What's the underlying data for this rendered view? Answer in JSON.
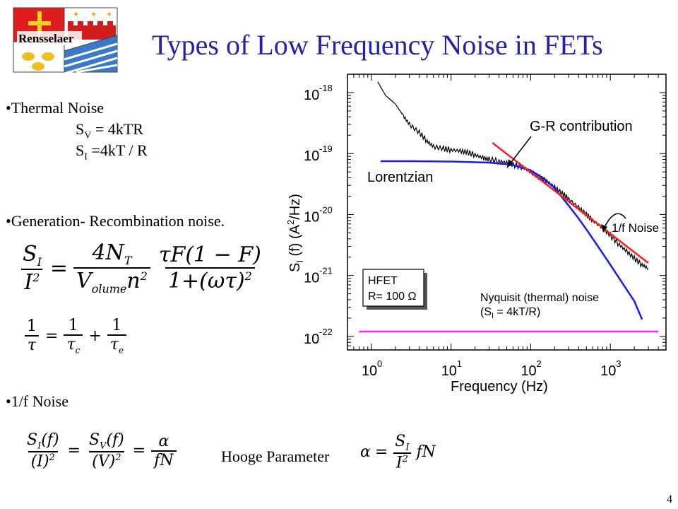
{
  "slide": {
    "title": "Types of Low Frequency Noise in FETs",
    "page_number": "4",
    "logo_text": "Rensselaer"
  },
  "thermal": {
    "bullet": "•Thermal Noise",
    "sv": "S",
    "sv_sub": "V",
    "sv_rest": " = 4kTR",
    "si": "S",
    "si_sub": "I",
    "si_rest": " =4kT / R"
  },
  "gr": {
    "bullet": "•Generation- Recombination noise.",
    "lhs_num": "S",
    "lhs_num_sub": "I",
    "lhs_den": "I",
    "lhs_den_sup": "2",
    "mid_num": "4N",
    "mid_num_sub": "T",
    "mid_den": "V",
    "mid_den_sub": "olume",
    "mid_den_rest": "n",
    "mid_den_sup": "2",
    "right_num": "τF(1 − F)",
    "right_den": "1+(ωτ)",
    "right_den_sup": "2",
    "tau_lhs": "τ",
    "tau_c": "τ",
    "tau_c_sub": "c",
    "tau_e": "τ",
    "tau_e_sub": "e",
    "one": "1"
  },
  "flicker": {
    "bullet": "•1/f Noise",
    "f1_num": "S",
    "f1_num_sub": "I",
    "f1_num_rest": "(f)",
    "f1_den": "(I)",
    "f1_den_sup": "2",
    "f2_num": "S",
    "f2_num_sub": "V",
    "f2_num_rest": "(f)",
    "f2_den": "(V)",
    "f2_den_sup": "2",
    "f3_num": "α",
    "f3_den": "fN",
    "hooge_label": "Hooge Parameter",
    "h_lhs": "α",
    "h_num": "S",
    "h_num_sub": "I",
    "h_den": "I",
    "h_den_sup": "2",
    "h_rest": "fN"
  },
  "chart_data": {
    "type": "line",
    "x_scale": "log",
    "y_scale": "log",
    "xlim": [
      0.5,
      5000
    ],
    "ylim": [
      6e-23,
      2e-18
    ],
    "x_tick_labels": [
      "10",
      "10",
      "10",
      "10"
    ],
    "x_tick_exps": [
      "0",
      "1",
      "2",
      "3"
    ],
    "y_tick_labels": [
      "10",
      "10",
      "10",
      "10",
      "10"
    ],
    "y_tick_exps": [
      "-18",
      "-19",
      "-20",
      "-21",
      "-22"
    ],
    "xlabel": "Frequency (Hz)",
    "ylabel_main": "S",
    "ylabel_sub": "I",
    "ylabel_f": "(f)",
    "ylabel_units": "(A",
    "ylabel_units_sup": "2",
    "ylabel_units_end": "/Hz)",
    "annotations": {
      "gr": "G-R contribution",
      "lorentz": "Lorentzian",
      "oneoverf": "1/f Noise",
      "nyq1": "Nyquisit (thermal) noise",
      "nyq2a": "(S",
      "nyq2sub": "I",
      "nyq2b": " = 4kT/R)",
      "box1": "HFET",
      "box2": "R= 100 Ω"
    },
    "colors": {
      "measured": "#000000",
      "lorentzian": "#1a1aff",
      "oneoverf": "#ff1a1a",
      "thermal": "#ff22ff"
    },
    "series": [
      {
        "x": [
          1.2,
          1.5,
          2,
          2.5,
          3,
          4,
          5,
          6,
          8,
          10,
          13,
          16,
          20,
          25,
          30,
          40,
          50,
          60,
          80,
          100,
          130,
          160,
          200,
          250,
          300,
          400,
          500,
          600,
          800,
          1000,
          1300,
          1600,
          2000,
          2500,
          3000
        ],
        "y": [
          1.5e-18,
          9e-19,
          6.5e-19,
          4.2e-19,
          3e-19,
          2.2e-19,
          1.6e-19,
          1.3e-19,
          1.2e-19,
          1.15e-19,
          1.1e-19,
          1.05e-19,
          9.5e-20,
          8.5e-20,
          8e-20,
          7.5e-20,
          7e-20,
          6.5e-20,
          6e-20,
          5e-20,
          4e-20,
          3.5e-20,
          2.8e-20,
          2.2e-20,
          1.8e-20,
          1.3e-20,
          1e-20,
          8e-21,
          6e-21,
          4.5e-21,
          3.2e-21,
          2.5e-21,
          1.9e-21,
          1.5e-21,
          1.3e-21
        ]
      },
      {
        "x": [
          1.3,
          3,
          10,
          30,
          60,
          100,
          150,
          200,
          300,
          400,
          500,
          700,
          1000,
          1500,
          2000,
          2500
        ],
        "y": [
          7.5e-20,
          7.5e-20,
          7.4e-20,
          7.1e-20,
          6.5e-20,
          5.3e-20,
          3.8e-20,
          2.7e-20,
          1.4e-20,
          8.6e-21,
          5.7e-21,
          3e-21,
          1.5e-21,
          6.7e-22,
          3.8e-22,
          1.9e-22
        ]
      },
      {
        "x": [
          33,
          3000
        ],
        "y": [
          1.5e-19,
          1.6e-21
        ]
      },
      {
        "x": [
          0.7,
          4000
        ],
        "y": [
          1.2e-22,
          1.2e-22
        ]
      }
    ]
  }
}
